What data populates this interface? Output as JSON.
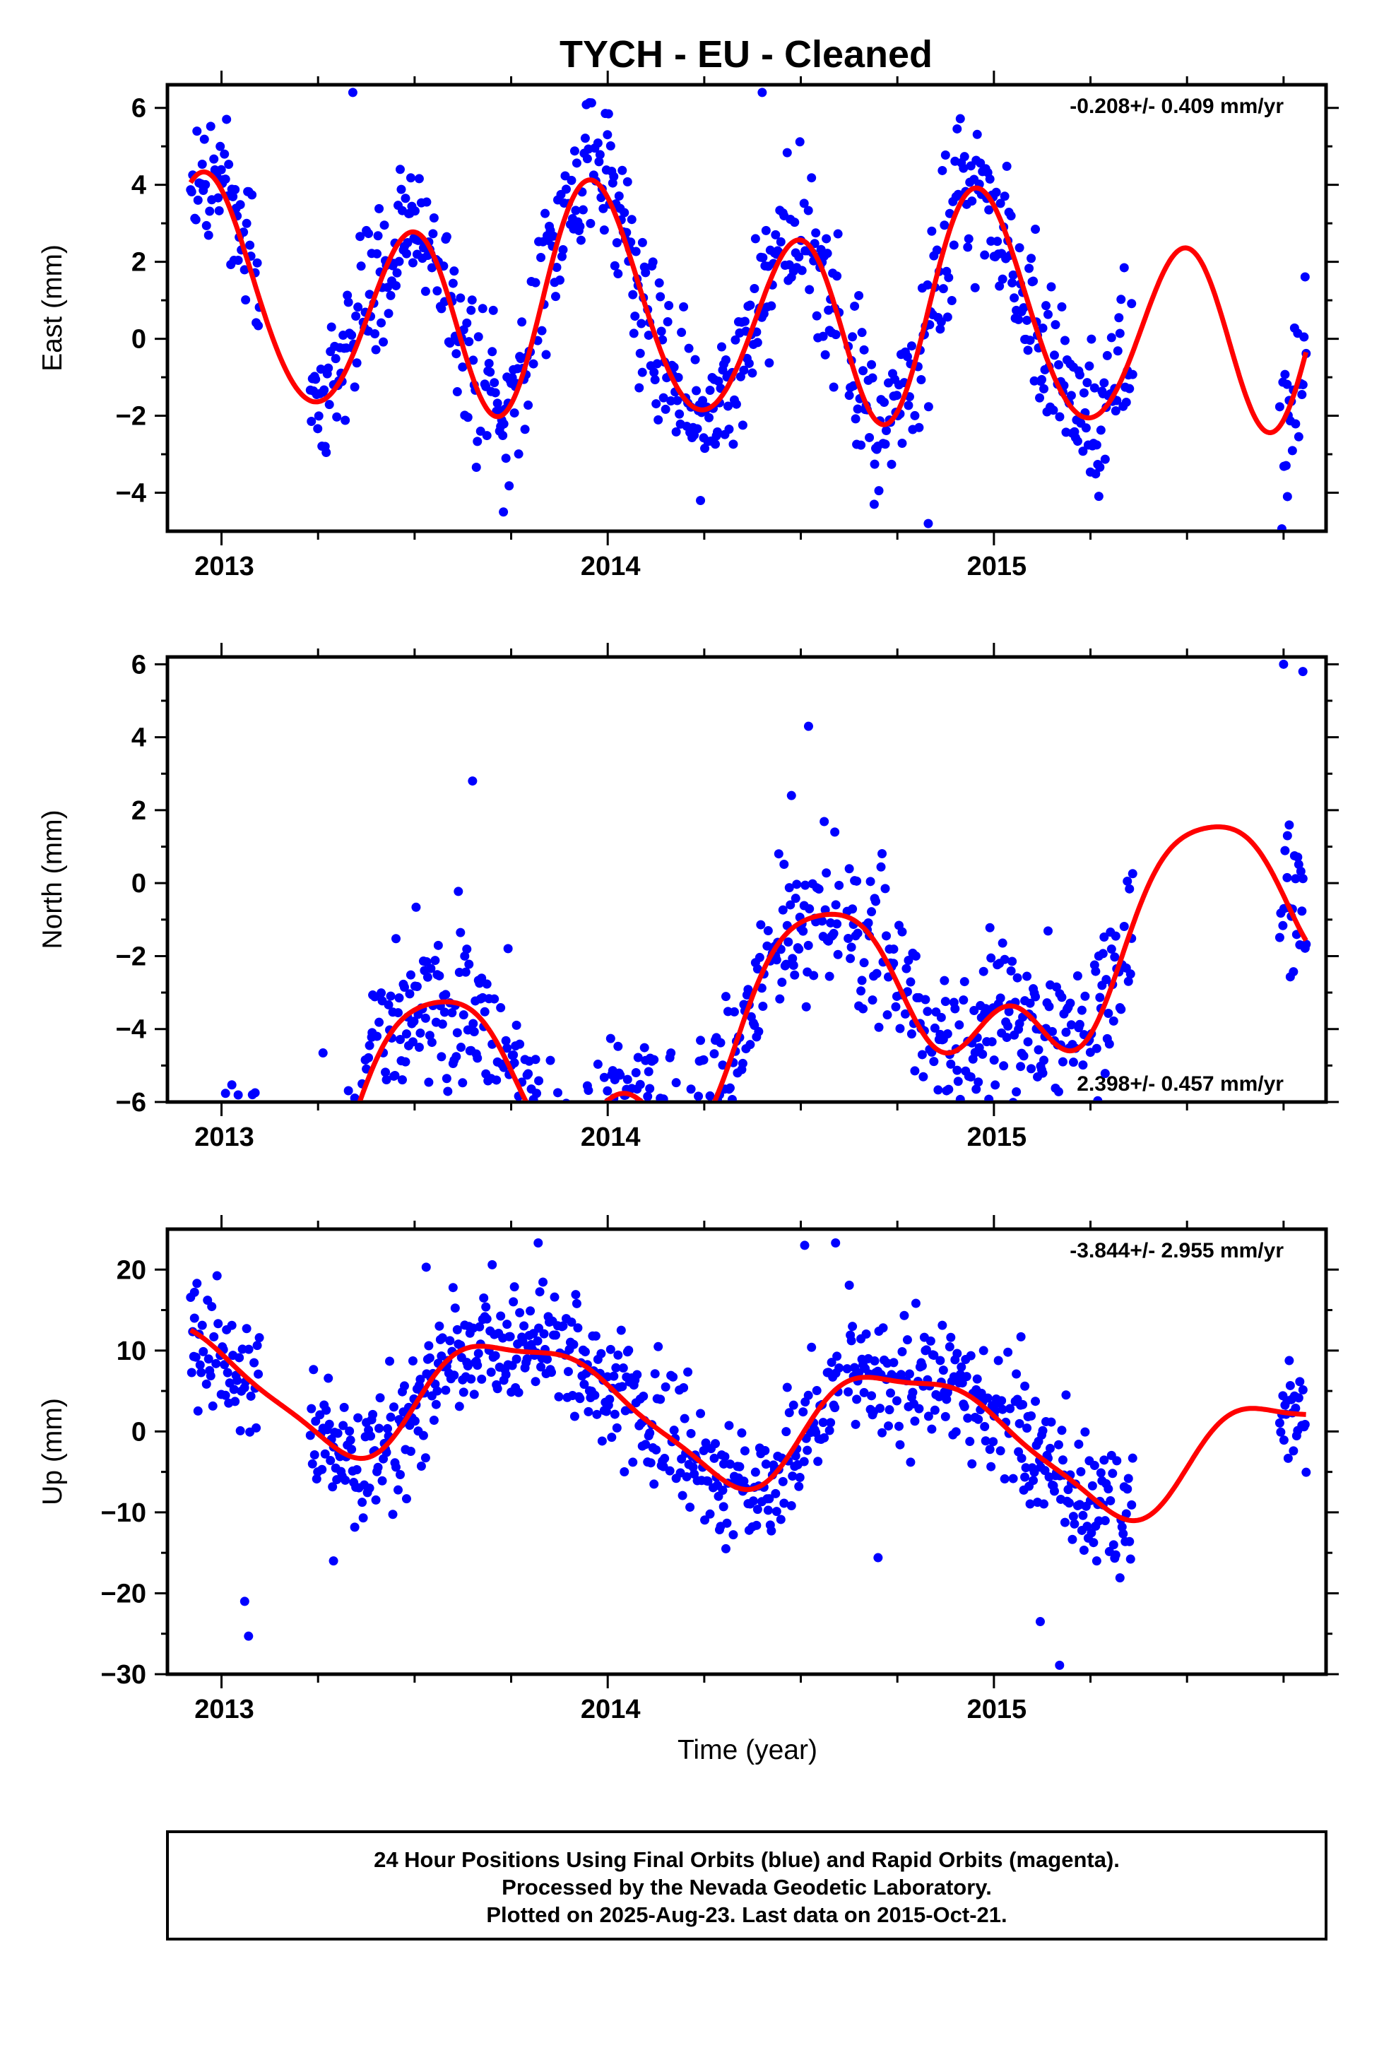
{
  "title": "TYCH  - EU - Cleaned",
  "x_axis_label": "Time (year)",
  "footer": {
    "line1": "24 Hour Positions Using Final Orbits (blue) and Rapid Orbits (magenta).",
    "line2": "Processed by the Nevada Geodetic Laboratory.",
    "line3": "Plotted on 2025-Aug-23. Last data on 2015-Oct-21."
  },
  "colors": {
    "points": "#0000ff",
    "fit": "#ff0000",
    "axis": "#000000"
  },
  "chart_data": [
    {
      "type": "scatter",
      "name": "east",
      "ylabel": "East (mm)",
      "rate_label": "-0.208+/- 0.409 mm/yr",
      "rate_position": "top-right",
      "xlim": [
        2012.86,
        2015.86
      ],
      "ylim": [
        -5,
        6.6
      ],
      "xticks": [
        2013,
        2014,
        2015
      ],
      "xtick_labels": [
        "2013",
        "2014",
        "2015"
      ],
      "yticks": [
        -4,
        -2,
        0,
        2,
        4,
        6
      ],
      "ytick_labels": [
        "−4",
        "−2",
        "0",
        "2",
        "4",
        "6"
      ],
      "data_ranges": [
        [
          2012.92,
          2013.1
        ],
        [
          2013.23,
          2014.6
        ],
        [
          2014.62,
          2015.36
        ],
        [
          2015.74,
          2015.81
        ]
      ],
      "fit": {
        "offset": 0.7,
        "slope": -0.208,
        "a1": -0.8,
        "phi1": 5.18,
        "a2": 2.6,
        "phi2": 1.89,
        "a3": 0.4,
        "phi3": 3.71
      },
      "noise_sd": 1.0,
      "outliers": [
        [
          2013.34,
          6.4
        ],
        [
          2014.4,
          6.4
        ],
        [
          2014.83,
          -4.8
        ],
        [
          2014.69,
          -4.3
        ],
        [
          2013.73,
          -4.5
        ],
        [
          2015.76,
          -4.1
        ],
        [
          2014.09,
          2.5
        ],
        [
          2013.38,
          0.2
        ]
      ]
    },
    {
      "type": "scatter",
      "name": "north",
      "ylabel": "North (mm)",
      "rate_label": "2.398+/- 0.457 mm/yr",
      "rate_position": "bottom-right",
      "xlim": [
        2012.86,
        2015.86
      ],
      "ylim": [
        -6,
        6.2
      ],
      "xticks": [
        2013,
        2014,
        2015
      ],
      "xtick_labels": [
        "2013",
        "2014",
        "2015"
      ],
      "yticks": [
        -6,
        -4,
        -2,
        0,
        2,
        4,
        6
      ],
      "ytick_labels": [
        "−6",
        "−4",
        "−2",
        "0",
        "2",
        "4",
        "6"
      ],
      "data_ranges": [
        [
          2012.92,
          2013.1
        ],
        [
          2013.23,
          2014.6
        ],
        [
          2014.62,
          2015.36
        ],
        [
          2015.74,
          2015.81
        ]
      ],
      "fit": {
        "offset": -4.98,
        "slope": 2.398,
        "a1": 2.35,
        "phi1": 4.31,
        "a2": 0.95,
        "phi2": 1.14,
        "a3": 0.5,
        "phi3": 0.7
      },
      "noise_sd": 1.1,
      "outliers": [
        [
          2013.08,
          -5.8
        ],
        [
          2013.65,
          2.8
        ],
        [
          2013.62,
          -4.5
        ],
        [
          2013.39,
          -4.1
        ],
        [
          2014.52,
          4.3
        ],
        [
          2015.75,
          6.0
        ],
        [
          2015.8,
          5.8
        ],
        [
          2015.76,
          1.3
        ],
        [
          2014.74,
          -2.2
        ],
        [
          2014.11,
          -4.8
        ]
      ]
    },
    {
      "type": "scatter",
      "name": "up",
      "ylabel": "Up (mm)",
      "rate_label": "-3.844+/- 2.955 mm/yr",
      "rate_position": "top-right",
      "xlim": [
        2012.86,
        2015.86
      ],
      "ylim": [
        -30,
        25
      ],
      "xticks": [
        2013,
        2014,
        2015
      ],
      "xtick_labels": [
        "2013",
        "2014",
        "2015"
      ],
      "yticks": [
        -30,
        -20,
        -10,
        0,
        10,
        20
      ],
      "ytick_labels": [
        "−30",
        "−20",
        "−10",
        "0",
        "10",
        "20"
      ],
      "data_ranges": [
        [
          2012.92,
          2013.1
        ],
        [
          2013.23,
          2014.6
        ],
        [
          2014.62,
          2015.36
        ],
        [
          2015.74,
          2015.81
        ]
      ],
      "fit": {
        "offset": 3.23,
        "slope": -3.844,
        "a1": 7.4,
        "phi1": 2.82,
        "a2": 1.6,
        "phi2": 0.18,
        "a3": 0.9,
        "phi3": 3.26
      },
      "noise_sd": 4.0,
      "outliers": [
        [
          2012.93,
          17.2
        ],
        [
          2012.93,
          14.0
        ],
        [
          2013.07,
          -25.3
        ],
        [
          2013.06,
          -21.0
        ],
        [
          2013.29,
          -16.0
        ],
        [
          2013.82,
          23.3
        ],
        [
          2014.59,
          23.3
        ],
        [
          2014.51,
          23.0
        ],
        [
          2015.17,
          -28.9
        ],
        [
          2015.12,
          -23.5
        ],
        [
          2015.07,
          11.7
        ],
        [
          2015.08,
          5.6
        ],
        [
          2013.53,
          20.3
        ],
        [
          2014.7,
          -15.6
        ],
        [
          2014.3,
          -9.3
        ]
      ]
    }
  ]
}
